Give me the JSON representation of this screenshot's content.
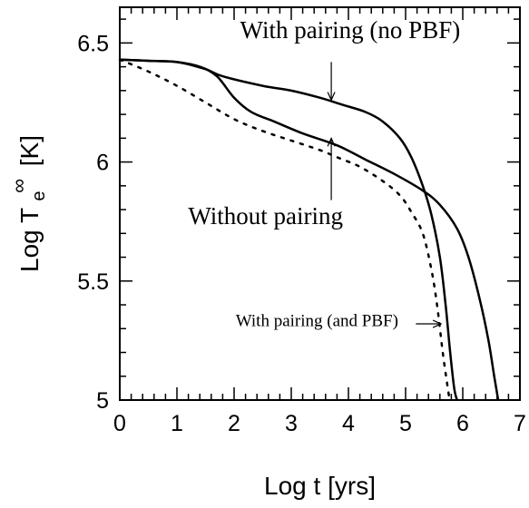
{
  "chart_data": {
    "type": "line",
    "xlabel": "Log t [yrs]",
    "ylabel_main": "Log T",
    "ylabel_sub": "e",
    "ylabel_sup": "∞",
    "ylabel_unit": "[K]",
    "xlim": [
      0,
      7
    ],
    "ylim": [
      5,
      6.65
    ],
    "xticks": [
      0,
      1,
      2,
      3,
      4,
      5,
      6,
      7
    ],
    "xtick_labels": [
      "0",
      "1",
      "2",
      "3",
      "4",
      "5",
      "6",
      "7"
    ],
    "yticks": [
      5,
      5.5,
      6,
      6.5
    ],
    "ytick_labels": [
      "5",
      "5.5",
      "6",
      "6.5"
    ],
    "grid": false,
    "series": [
      {
        "name": "With pairing (no PBF)",
        "style": "solid",
        "x": [
          0,
          0.5,
          1.0,
          1.5,
          1.8,
          2.5,
          3.0,
          3.5,
          3.9,
          4.3,
          4.6,
          4.9,
          5.1,
          5.3,
          5.45,
          5.6,
          5.7,
          5.78,
          5.85,
          5.9
        ],
        "y": [
          6.43,
          6.425,
          6.42,
          6.39,
          6.36,
          6.32,
          6.3,
          6.27,
          6.24,
          6.21,
          6.17,
          6.1,
          6.02,
          5.9,
          5.78,
          5.6,
          5.4,
          5.2,
          5.05,
          5.0
        ]
      },
      {
        "name": "Without pairing",
        "style": "solid",
        "x": [
          0,
          0.5,
          1.0,
          1.4,
          1.7,
          2.0,
          2.3,
          2.7,
          3.2,
          3.8,
          4.3,
          4.8,
          5.3,
          5.6,
          5.9,
          6.1,
          6.3,
          6.45,
          6.55,
          6.62
        ],
        "y": [
          6.43,
          6.425,
          6.42,
          6.4,
          6.36,
          6.27,
          6.21,
          6.17,
          6.12,
          6.07,
          6.01,
          5.95,
          5.88,
          5.82,
          5.72,
          5.6,
          5.42,
          5.25,
          5.1,
          5.0
        ]
      },
      {
        "name": "With pairing (and PBF)",
        "style": "dotted",
        "x": [
          0,
          0.5,
          1.0,
          1.5,
          2.0,
          2.5,
          3.0,
          3.5,
          3.8,
          4.2,
          4.6,
          4.9,
          5.1,
          5.3,
          5.45,
          5.55,
          5.65,
          5.72,
          5.77
        ],
        "y": [
          6.43,
          6.38,
          6.32,
          6.25,
          6.18,
          6.13,
          6.09,
          6.05,
          6.02,
          5.98,
          5.92,
          5.86,
          5.79,
          5.7,
          5.55,
          5.4,
          5.2,
          5.08,
          5.0
        ]
      }
    ],
    "annotations": [
      {
        "text": "With pairing (no PBF)",
        "size": "big",
        "tx": 4.03,
        "ty": 6.52,
        "ax1": 3.7,
        "ay1": 6.42,
        "ax2": 3.7,
        "ay2": 6.26
      },
      {
        "text": "Without pairing",
        "size": "big",
        "tx": 2.55,
        "ty": 5.74,
        "ax1": 3.7,
        "ay1": 5.84,
        "ax2": 3.7,
        "ay2": 6.1
      },
      {
        "text": "With pairing (and PBF)",
        "size": "small",
        "tx": 3.45,
        "ty": 5.31,
        "ax1": 5.18,
        "ay1": 5.32,
        "ax2": 5.62,
        "ay2": 5.32
      }
    ]
  }
}
